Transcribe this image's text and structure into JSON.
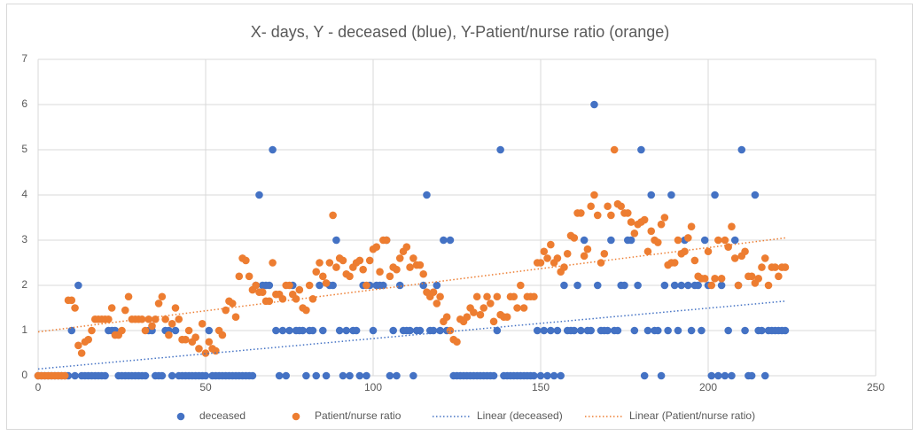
{
  "chart_data": {
    "type": "scatter",
    "title": "X- days, Y - deceased (blue), Y-Patient/nurse ratio (orange)",
    "x": [
      0,
      1,
      2,
      3,
      4,
      5,
      6,
      7,
      8,
      9,
      10,
      11,
      12,
      13,
      14,
      15,
      16,
      17,
      18,
      19,
      20,
      21,
      22,
      23,
      24,
      25,
      26,
      27,
      28,
      29,
      30,
      31,
      32,
      33,
      34,
      35,
      36,
      37,
      38,
      39,
      40,
      41,
      42,
      43,
      44,
      45,
      46,
      47,
      48,
      49,
      50,
      51,
      52,
      53,
      54,
      55,
      56,
      57,
      58,
      59,
      60,
      61,
      62,
      63,
      64,
      65,
      66,
      67,
      68,
      69,
      70,
      71,
      72,
      73,
      74,
      75,
      76,
      77,
      78,
      79,
      80,
      81,
      82,
      83,
      84,
      85,
      86,
      87,
      88,
      89,
      90,
      91,
      92,
      93,
      94,
      95,
      96,
      97,
      98,
      99,
      100,
      101,
      102,
      103,
      104,
      105,
      106,
      107,
      108,
      109,
      110,
      111,
      112,
      113,
      114,
      115,
      116,
      117,
      118,
      119,
      120,
      121,
      122,
      123,
      124,
      125,
      126,
      127,
      128,
      129,
      130,
      131,
      132,
      133,
      134,
      135,
      136,
      137,
      138,
      139,
      140,
      141,
      142,
      143,
      144,
      145,
      146,
      147,
      148,
      149,
      150,
      151,
      152,
      153,
      154,
      155,
      156,
      157,
      158,
      159,
      160,
      161,
      162,
      163,
      164,
      165,
      166,
      167,
      168,
      169,
      170,
      171,
      172,
      173,
      174,
      175,
      176,
      177,
      178,
      179,
      180,
      181,
      182,
      183,
      184,
      185,
      186,
      187,
      188,
      189,
      190,
      191,
      192,
      193,
      194,
      195,
      196,
      197,
      198,
      199,
      200,
      201,
      202,
      203,
      204,
      205,
      206,
      207,
      208,
      209,
      210,
      211,
      212,
      213,
      214,
      215,
      216,
      217,
      218,
      219,
      220,
      221,
      222,
      223
    ],
    "series": [
      {
        "name": "deceased",
        "color": "#4472c4",
        "marker": "circle",
        "values": [
          0,
          0,
          0,
          0,
          0,
          0,
          0,
          0,
          0,
          0,
          1,
          0,
          2,
          0,
          0,
          0,
          0,
          0,
          0,
          0,
          0,
          1,
          1,
          1,
          0,
          0,
          0,
          0,
          0,
          0,
          0,
          0,
          0,
          1,
          1,
          0,
          0,
          0,
          1,
          1,
          0,
          1,
          0,
          0,
          0,
          0,
          0,
          0,
          0,
          0,
          0,
          1,
          0,
          0,
          0,
          0,
          0,
          0,
          0,
          0,
          0,
          0,
          0,
          0,
          0,
          2,
          4,
          2,
          2,
          2,
          5,
          1,
          0,
          1,
          0,
          1,
          2,
          1,
          1,
          1,
          0,
          1,
          1,
          0,
          2,
          1,
          0,
          2,
          2,
          3,
          1,
          0,
          1,
          0,
          1,
          1,
          0,
          2,
          0,
          2,
          1,
          2,
          2,
          2,
          3,
          0,
          1,
          0,
          2,
          1,
          1,
          1,
          0,
          1,
          1,
          2,
          4,
          1,
          1,
          2,
          1,
          3,
          1,
          3,
          0,
          0,
          0,
          0,
          0,
          0,
          0,
          0,
          0,
          0,
          0,
          0,
          0,
          1,
          5,
          0,
          0,
          0,
          0,
          0,
          0,
          0,
          0,
          0,
          0,
          1,
          0,
          1,
          0,
          1,
          0,
          1,
          0,
          2,
          1,
          1,
          1,
          2,
          1,
          3,
          1,
          1,
          6,
          2,
          1,
          1,
          1,
          3,
          1,
          1,
          2,
          2,
          3,
          3,
          1,
          2,
          5,
          0,
          1,
          4,
          1,
          1,
          0,
          2,
          1,
          4,
          2,
          1,
          2,
          3,
          2,
          1,
          2,
          2,
          1,
          3,
          2,
          0,
          4,
          0,
          2,
          0,
          1,
          0,
          3,
          2,
          5,
          1,
          0,
          0,
          4,
          1,
          1,
          0,
          1,
          1,
          1,
          1,
          1,
          1
        ]
      },
      {
        "name": "Patient/nurse ratio",
        "color": "#ed7d31",
        "marker": "circle",
        "values": [
          0,
          0,
          0,
          0,
          0,
          0,
          0,
          0,
          0,
          1.67,
          1.67,
          1.5,
          0.67,
          0.5,
          0.75,
          0.8,
          1,
          1.25,
          1.25,
          1.25,
          1.25,
          1.25,
          1.5,
          0.9,
          0.9,
          1,
          1.45,
          1.75,
          1.25,
          1.25,
          1.25,
          1.25,
          1,
          1.25,
          1.1,
          1.25,
          1.6,
          1.75,
          1.25,
          0.9,
          1.15,
          1.5,
          1.25,
          0.8,
          0.8,
          1,
          0.75,
          0.85,
          0.6,
          1.15,
          0.5,
          0.75,
          0.6,
          0.55,
          1,
          0.9,
          1.45,
          1.65,
          1.6,
          1.3,
          2.2,
          2.6,
          2.55,
          2.2,
          1.9,
          2,
          1.85,
          1.85,
          1.65,
          1.65,
          2.5,
          1.8,
          1.8,
          1.7,
          2,
          2,
          1.8,
          1.7,
          1.9,
          1.5,
          1.45,
          2,
          1.7,
          2.3,
          2.5,
          2.2,
          2.05,
          2.5,
          3.55,
          2.4,
          2.6,
          2.55,
          2.25,
          2.2,
          2.4,
          2.5,
          2.55,
          2.35,
          2,
          2.55,
          2.8,
          2.85,
          2.3,
          3,
          3,
          2.2,
          2.4,
          2.35,
          2.6,
          2.75,
          2.85,
          2.4,
          2.6,
          2.45,
          2.45,
          2.25,
          1.85,
          1.75,
          1.85,
          1.6,
          1.75,
          1.2,
          1.3,
          1,
          0.8,
          0.75,
          1.25,
          1.2,
          1.3,
          1.5,
          1.4,
          1.75,
          1.35,
          1.5,
          1.75,
          1.6,
          1.2,
          1.75,
          1.35,
          1.3,
          1.3,
          1.75,
          1.75,
          1.5,
          2,
          1.5,
          1.75,
          1.75,
          1.75,
          2.5,
          2.5,
          2.75,
          2.6,
          2.9,
          2.5,
          2.6,
          2.3,
          2.4,
          2.7,
          3.1,
          3.05,
          3.6,
          3.6,
          2.65,
          2.8,
          3.75,
          4,
          3.55,
          2.5,
          2.7,
          3.75,
          3.55,
          5,
          3.8,
          3.75,
          3.6,
          3.6,
          3.4,
          3.15,
          3.35,
          3.4,
          3.45,
          2.75,
          3.2,
          3,
          2.95,
          3.35,
          3.5,
          2.45,
          2.5,
          2.5,
          3,
          2.7,
          2.75,
          3.05,
          3.3,
          2.55,
          2.2,
          2.15,
          2.15,
          2.75,
          2,
          2.15,
          3,
          2.15,
          3,
          2.85,
          3.3,
          2.6,
          2,
          2.65,
          2.75,
          2.2,
          2.2,
          2.05,
          2.15,
          2.4,
          2.6,
          2,
          2.4,
          2.4,
          2.2,
          2.4,
          2.4
        ]
      },
      {
        "name": "Linear (deceased)",
        "color": "#4472c4",
        "line": "dotted",
        "x": [
          0,
          223
        ],
        "values": [
          0.15,
          1.65
        ]
      },
      {
        "name": "Linear (Patient/nurse ratio)",
        "color": "#ed7d31",
        "line": "dotted",
        "x": [
          0,
          223
        ],
        "values": [
          0.97,
          3.05
        ]
      }
    ],
    "xlim": [
      0,
      250
    ],
    "xticks": [
      0,
      50,
      100,
      150,
      200,
      250
    ],
    "ylim": [
      0,
      7
    ],
    "yticks": [
      0,
      1,
      2,
      3,
      4,
      5,
      6,
      7
    ],
    "grid": true,
    "legend": "bottom"
  }
}
